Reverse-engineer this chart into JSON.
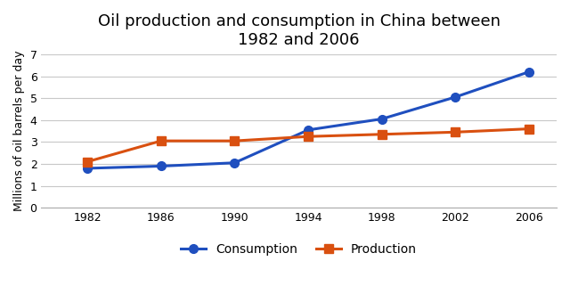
{
  "title": "Oil production and consumption in China between\n1982 and 2006",
  "ylabel": "Millions of oil barrels per day",
  "years": [
    1982,
    1986,
    1990,
    1994,
    1998,
    2002,
    2006
  ],
  "consumption": [
    1.8,
    1.9,
    2.05,
    3.55,
    4.05,
    5.05,
    6.2
  ],
  "production": [
    2.1,
    3.05,
    3.05,
    3.25,
    3.35,
    3.45,
    3.6
  ],
  "consumption_color": "#1F4FBF",
  "production_color": "#D95010",
  "background_color": "#ffffff",
  "ylim": [
    0,
    7
  ],
  "yticks": [
    0,
    1,
    2,
    3,
    4,
    5,
    6,
    7
  ],
  "grid_color": "#c8c8c8",
  "title_fontsize": 13,
  "axis_label_fontsize": 9,
  "tick_fontsize": 9,
  "legend_labels": [
    "Consumption",
    "Production"
  ],
  "consumption_marker": "o",
  "production_marker": "s",
  "linewidth": 2.2,
  "markersize": 7
}
